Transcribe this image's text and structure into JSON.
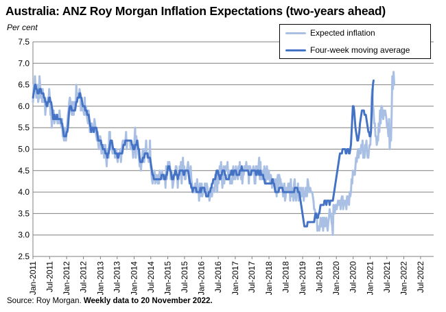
{
  "chart_data": {
    "type": "line",
    "title": "Australia: ANZ Roy Morgan Inflation Expectations (two-years ahead)",
    "ylabel": "Per cent",
    "xlabel": "",
    "ylim": [
      2.5,
      7.5
    ],
    "y_ticks": [
      "7.5",
      "7.0",
      "6.5",
      "6.0",
      "5.5",
      "5.0",
      "4.5",
      "4.0",
      "3.5",
      "3.0",
      "2.5"
    ],
    "x_ticks": [
      "Jan-2011",
      "Jul-2011",
      "Jan-2012",
      "Jul-2012",
      "Jan-2013",
      "Jul-2013",
      "Jan-2014",
      "Jul-2014",
      "Jan-2015",
      "Jul-2015",
      "Jan-2016",
      "Jul-2016",
      "Jan-2017",
      "Jul-2017",
      "Jan-2018",
      "Jul-2018",
      "Jan-2019",
      "Jul-2019",
      "Jan-2020",
      "Jul-2020",
      "Jan-2021",
      "Jul-2021",
      "Jan-2022",
      "Jul-2022"
    ],
    "grid": "horizontal",
    "legend_position": "top-right",
    "colors": {
      "expected": "#a9c0e4",
      "moving_average": "#4472c4",
      "grid": "#7f7f7f"
    },
    "x_range": [
      "2011-01-01",
      "2022-11-20"
    ],
    "series": [
      {
        "name": "Expected inflation",
        "frequency": "weekly",
        "x_start": "2011-01-02",
        "values": [
          6.1,
          6.5,
          6.4,
          6.7,
          6.4,
          6.2,
          6.2,
          6.5,
          6.1,
          6.2,
          6.7,
          6.5,
          6.2,
          6.4,
          6.1,
          6.4,
          6.1,
          6.2,
          6.2,
          5.8,
          6.0,
          6.0,
          6.1,
          6.2,
          6.1,
          6.4,
          6.2,
          5.8,
          5.9,
          5.5,
          5.8,
          5.7,
          5.9,
          5.6,
          5.7,
          5.8,
          5.8,
          5.7,
          5.6,
          5.8,
          5.6,
          5.9,
          5.7,
          5.6,
          5.5,
          5.7,
          5.3,
          5.3,
          5.2,
          5.5,
          5.3,
          5.2,
          5.4,
          5.6,
          5.8,
          5.9,
          6.1,
          6.2,
          6.1,
          5.9,
          5.8,
          6.1,
          5.8,
          5.8,
          6.1,
          5.9,
          6.0,
          6.5,
          6.1,
          6.3,
          6.3,
          6.2,
          6.4,
          6.3,
          5.9,
          6.2,
          6.0,
          5.9,
          5.9,
          5.8,
          6.2,
          5.8,
          6.0,
          5.8,
          5.7,
          5.6,
          5.9,
          5.7,
          5.4,
          5.4,
          5.4,
          5.6,
          5.4,
          5.4,
          5.4,
          5.7,
          5.6,
          5.4,
          5.3,
          5.2,
          5.4,
          5.1,
          5.0,
          5.3,
          5.3,
          5.2,
          4.9,
          5.0,
          4.9,
          5.1,
          4.8,
          5.0,
          5.1,
          4.8,
          4.6,
          5.0,
          5.0,
          4.8,
          5.4,
          5.4,
          5.0,
          5.2,
          5.1,
          4.9,
          4.9,
          5.0,
          5.0,
          4.8,
          5.0,
          5.0,
          4.8,
          4.7,
          4.9,
          4.9,
          4.9,
          5.0,
          4.7,
          4.9,
          5.1,
          5.2,
          5.2,
          5.1,
          5.2,
          5.2,
          5.4,
          5.0,
          5.2,
          5.2,
          5.2,
          5.2,
          5.2,
          5.0,
          5.0,
          5.1,
          5.0,
          4.8,
          5.0,
          5.2,
          5.5,
          4.8,
          5.3,
          5.0,
          5.2,
          4.9,
          4.8,
          4.6,
          4.7,
          4.5,
          4.7,
          4.8,
          5.0,
          5.0,
          4.7,
          5.0,
          4.9,
          5.2,
          4.9,
          4.8,
          4.9,
          4.7,
          4.8,
          5.2,
          4.6,
          4.5,
          4.3,
          4.2,
          4.4,
          4.3,
          4.5,
          4.2,
          4.3,
          4.4,
          4.3,
          4.2,
          4.4,
          4.2,
          4.5,
          4.3,
          4.4,
          4.4,
          4.5,
          4.3,
          4.4,
          4.3,
          4.4,
          4.1,
          4.6,
          4.3,
          4.5,
          4.7,
          4.6,
          4.7,
          4.6,
          4.3,
          4.5,
          4.4,
          4.1,
          4.2,
          4.3,
          4.4,
          4.4,
          4.6,
          4.6,
          4.4,
          4.1,
          4.4,
          4.3,
          4.6,
          4.4,
          4.7,
          4.2,
          4.5,
          4.8,
          4.4,
          4.6,
          4.3,
          4.3,
          4.5,
          4.5,
          4.6,
          4.7,
          4.4,
          4.2,
          4.5,
          4.6,
          4.3,
          4.2,
          4.1,
          4.1,
          4.0,
          4.0,
          4.2,
          4.0,
          4.1,
          4.3,
          4.0,
          4.1,
          3.8,
          4.2,
          3.9,
          4.1,
          4.2,
          3.9,
          4.0,
          4.1,
          4.0,
          4.2,
          4.1,
          3.9,
          4.2,
          4.1,
          4.0,
          4.0,
          3.8,
          3.9,
          3.9,
          4.0,
          3.9,
          4.1,
          4.1,
          4.1,
          4.0,
          4.4,
          4.4,
          4.3,
          4.0,
          4.4,
          4.2,
          4.4,
          4.6,
          4.5,
          4.7,
          4.4,
          4.1,
          4.3,
          4.6,
          4.2,
          4.5,
          4.6,
          4.5,
          4.5,
          4.7,
          4.4,
          4.3,
          4.5,
          4.2,
          4.2,
          4.3,
          4.2,
          4.5,
          4.6,
          4.3,
          4.5,
          4.3,
          4.6,
          4.5,
          4.4,
          4.3,
          4.6,
          4.4,
          4.7,
          4.5,
          4.3,
          4.5,
          4.2,
          4.4,
          4.4,
          4.6,
          4.5,
          4.5,
          4.7,
          4.5,
          4.5,
          4.6,
          4.2,
          4.6,
          4.6,
          4.5,
          4.4,
          4.5,
          4.5,
          4.6,
          4.5,
          4.2,
          4.2,
          4.6,
          4.6,
          4.4,
          4.4,
          4.6,
          4.8,
          4.3,
          4.7,
          4.3,
          4.3,
          4.3,
          4.5,
          4.4,
          4.6,
          4.5,
          4.2,
          4.4,
          4.6,
          4.3,
          4.5,
          4.5,
          4.3,
          4.2,
          4.4,
          4.3,
          4.1,
          4.2,
          4.2,
          4.3,
          4.2,
          4.2,
          4.3,
          3.9,
          4.3,
          4.4,
          4.1,
          4.4,
          4.3,
          4.3,
          4.1,
          4.2,
          4.1,
          3.9,
          3.9,
          4.2,
          3.8,
          3.9,
          4.1,
          4.0,
          4.0,
          4.2,
          4.1,
          4.2,
          3.8,
          4.3,
          3.9,
          4.1,
          4.0,
          3.8,
          4.2,
          4.3,
          3.9,
          3.8,
          4.0,
          4.0,
          4.2,
          3.8,
          4.0,
          4.1,
          3.9,
          4.1,
          3.9,
          4.0,
          4.1,
          3.8,
          4.0,
          3.9,
          4.1,
          4.1,
          3.9,
          4.3,
          4.2,
          4.0,
          4.0,
          4.1,
          4.0,
          4.0,
          4.0,
          3.9,
          3.8,
          3.6,
          3.6,
          3.5,
          3.4,
          3.5,
          3.1,
          3.2,
          3.2,
          3.1,
          3.2,
          3.4,
          3.2,
          3.2,
          3.4,
          3.1,
          3.4,
          3.4,
          3.2,
          3.3,
          3.4,
          3.2,
          3.1,
          3.3,
          3.4,
          3.6,
          3.5,
          3.5,
          3.3,
          3.2,
          3.0,
          3.7,
          3.5,
          3.5,
          3.7,
          3.7,
          3.6,
          3.7,
          3.8,
          3.7,
          3.8,
          3.8,
          3.6,
          3.8,
          3.9,
          3.9,
          3.6,
          3.8,
          3.7,
          3.8,
          3.7,
          3.6,
          3.9,
          3.9,
          3.8,
          3.7,
          4.0,
          3.9,
          4.0,
          4.3,
          4.2,
          4.5,
          4.4,
          4.4,
          4.4,
          4.6,
          4.8,
          4.7,
          4.9,
          5.0,
          4.8,
          5.0,
          4.9,
          4.9,
          5.1,
          5.0,
          5.2,
          4.8,
          5.0,
          4.8,
          5.1,
          5.0,
          5.2,
          4.9,
          4.8,
          4.8,
          5.0,
          5.1,
          5.1,
          5.5,
          6.2,
          6.4,
          6.0,
          5.9,
          5.6,
          5.6,
          5.3,
          5.3,
          5.1,
          5.2,
          5.2,
          5.6,
          5.4,
          5.9,
          5.6,
          6.0,
          6.0,
          5.8,
          5.7,
          5.9,
          5.8,
          5.9,
          5.8,
          5.7,
          5.5,
          5.5,
          5.3,
          5.7,
          5.0,
          5.4,
          5.2,
          5.8,
          6.7,
          6.4,
          6.8,
          6.5
        ]
      },
      {
        "name": "Four-week moving average",
        "frequency": "weekly",
        "x_start": "2011-01-02",
        "values": [
          6.2,
          6.3,
          6.4,
          6.5,
          6.5,
          6.4,
          6.4,
          6.3,
          6.3,
          6.3,
          6.4,
          6.4,
          6.4,
          6.3,
          6.3,
          6.3,
          6.3,
          6.2,
          6.2,
          6.1,
          6.1,
          6.0,
          6.0,
          6.1,
          6.1,
          6.2,
          6.2,
          6.1,
          6.1,
          6.0,
          5.9,
          5.7,
          5.7,
          5.8,
          5.7,
          5.7,
          5.7,
          5.8,
          5.7,
          5.7,
          5.7,
          5.7,
          5.7,
          5.7,
          5.6,
          5.6,
          5.5,
          5.4,
          5.3,
          5.3,
          5.3,
          5.3,
          5.4,
          5.4,
          5.5,
          5.7,
          5.9,
          6.0,
          6.0,
          6.0,
          5.9,
          5.9,
          5.9,
          5.9,
          5.9,
          5.9,
          6.0,
          6.1,
          6.1,
          6.2,
          6.2,
          6.2,
          6.3,
          6.3,
          6.2,
          6.2,
          6.1,
          6.0,
          6.0,
          6.0,
          6.0,
          5.9,
          5.9,
          5.9,
          5.8,
          5.8,
          5.8,
          5.7,
          5.6,
          5.5,
          5.4,
          5.5,
          5.5,
          5.5,
          5.4,
          5.5,
          5.5,
          5.5,
          5.5,
          5.4,
          5.3,
          5.2,
          5.2,
          5.2,
          5.2,
          5.2,
          5.1,
          5.1,
          5.0,
          5.0,
          5.0,
          5.0,
          4.9,
          4.9,
          4.9,
          4.8,
          4.9,
          4.9,
          5.0,
          5.1,
          5.2,
          5.2,
          5.2,
          5.1,
          5.0,
          5.0,
          5.0,
          4.9,
          4.9,
          4.9,
          4.9,
          4.8,
          4.8,
          4.9,
          4.9,
          4.9,
          4.9,
          4.9,
          4.9,
          5.0,
          5.1,
          5.1,
          5.1,
          5.2,
          5.2,
          5.2,
          5.2,
          5.2,
          5.2,
          5.2,
          5.2,
          5.2,
          5.2,
          5.1,
          5.1,
          5.0,
          5.0,
          5.0,
          5.1,
          5.1,
          5.1,
          5.2,
          5.1,
          5.0,
          5.0,
          4.8,
          4.7,
          4.7,
          4.7,
          4.7,
          4.8,
          4.8,
          4.8,
          4.9,
          4.9,
          4.9,
          4.9,
          4.9,
          4.8,
          4.8,
          4.8,
          4.8,
          4.7,
          4.6,
          4.5,
          4.4,
          4.4,
          4.3,
          4.3,
          4.3,
          4.3,
          4.3,
          4.3,
          4.3,
          4.3,
          4.3,
          4.3,
          4.3,
          4.3,
          4.4,
          4.4,
          4.4,
          4.4,
          4.3,
          4.3,
          4.3,
          4.4,
          4.4,
          4.5,
          4.6,
          4.6,
          4.6,
          4.5,
          4.5,
          4.4,
          4.3,
          4.3,
          4.3,
          4.4,
          4.4,
          4.5,
          4.5,
          4.4,
          4.4,
          4.3,
          4.4,
          4.4,
          4.5,
          4.5,
          4.5,
          4.5,
          4.5,
          4.5,
          4.4,
          4.4,
          4.5,
          4.5,
          4.5,
          4.5,
          4.5,
          4.5,
          4.4,
          4.3,
          4.2,
          4.2,
          4.1,
          4.1,
          4.0,
          4.1,
          4.1,
          4.1,
          4.1,
          4.1,
          4.0,
          4.0,
          4.0,
          4.0,
          4.0,
          4.0,
          4.1,
          4.0,
          4.1,
          4.1,
          4.1,
          4.1,
          4.1,
          4.0,
          4.0,
          3.9,
          3.9,
          3.9,
          3.9,
          4.0,
          4.0,
          4.0,
          4.1,
          4.1,
          4.2,
          4.2,
          4.3,
          4.3,
          4.3,
          4.3,
          4.4,
          4.5,
          4.5,
          4.5,
          4.4,
          4.4,
          4.3,
          4.3,
          4.4,
          4.4,
          4.5,
          4.5,
          4.5,
          4.5,
          4.4,
          4.4,
          4.3,
          4.3,
          4.3,
          4.3,
          4.3,
          4.4,
          4.4,
          4.4,
          4.5,
          4.5,
          4.4,
          4.4,
          4.5,
          4.5,
          4.5,
          4.5,
          4.4,
          4.4,
          4.4,
          4.4,
          4.4,
          4.5,
          4.5,
          4.5,
          4.6,
          4.5,
          4.5,
          4.5,
          4.5,
          4.5,
          4.5,
          4.5,
          4.5,
          4.5,
          4.5,
          4.4,
          4.4,
          4.4,
          4.4,
          4.5,
          4.5,
          4.5,
          4.5,
          4.5,
          4.5,
          4.5,
          4.4,
          4.4,
          4.5,
          4.5,
          4.5,
          4.4,
          4.4,
          4.5,
          4.4,
          4.4,
          4.4,
          4.4,
          4.3,
          4.3,
          4.2,
          4.2,
          4.2,
          4.2,
          4.2,
          4.2,
          4.2,
          4.2,
          4.2,
          4.2,
          4.2,
          4.3,
          4.3,
          4.2,
          4.2,
          4.1,
          4.0,
          4.0,
          4.0,
          4.0,
          4.0,
          4.0,
          4.1,
          4.1,
          4.1,
          4.1,
          4.1,
          4.1,
          4.0,
          4.0,
          4.0,
          4.0,
          4.0,
          4.0,
          4.0,
          4.0,
          4.0,
          4.0,
          4.0,
          4.0,
          4.0,
          4.0,
          4.0,
          4.0,
          4.0,
          4.0,
          4.1,
          4.1,
          4.1,
          4.1,
          4.1,
          4.0,
          4.0,
          4.0,
          3.9,
          3.8,
          3.7,
          3.6,
          3.5,
          3.4,
          3.3,
          3.2,
          3.2,
          3.2,
          3.2,
          3.2,
          3.3,
          3.3,
          3.3,
          3.3,
          3.3,
          3.3,
          3.3,
          3.3,
          3.3,
          3.3,
          3.3,
          3.4,
          3.5,
          3.5,
          3.4,
          3.4,
          3.4,
          3.5,
          3.5,
          3.6,
          3.7,
          3.7,
          3.7,
          3.7,
          3.7,
          3.7,
          3.8,
          3.8,
          3.8,
          3.7,
          3.8,
          3.8,
          3.8,
          3.8,
          3.7,
          3.8,
          3.8,
          3.8,
          3.8,
          3.8,
          3.9,
          4.0,
          4.1,
          4.2,
          4.3,
          4.4,
          4.5,
          4.6,
          4.7,
          4.8,
          4.9,
          4.9,
          4.9,
          4.9,
          5.0,
          5.0,
          5.0,
          5.0,
          5.0,
          4.9,
          4.9,
          5.0,
          5.0,
          5.0,
          4.9,
          4.9,
          5.0,
          5.1,
          5.4,
          5.7,
          6.0,
          6.0,
          5.9,
          5.7,
          5.5,
          5.4,
          5.3,
          5.2,
          5.2,
          5.3,
          5.4,
          5.6,
          5.7,
          5.8,
          5.9,
          5.9,
          5.9,
          5.9,
          5.8,
          5.8,
          5.8,
          5.7,
          5.6,
          5.5,
          5.4,
          5.4,
          5.3,
          5.3,
          5.4,
          5.8,
          6.2,
          6.5,
          6.6
        ]
      }
    ]
  },
  "source": {
    "prefix": "Source: Roy Morgan. ",
    "note": "Weekly data to 20 November 2022."
  }
}
